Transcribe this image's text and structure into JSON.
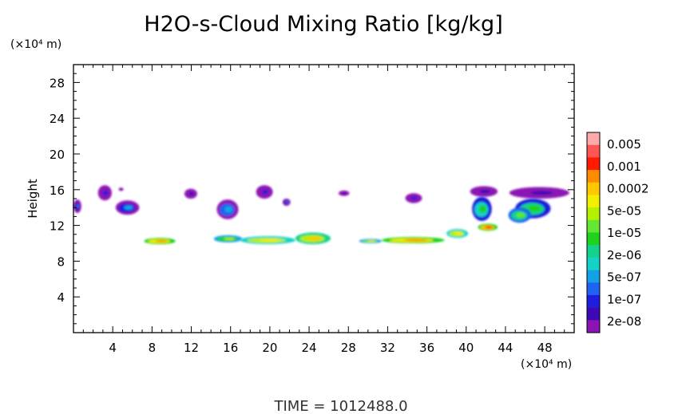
{
  "chart_data": {
    "type": "heatmap",
    "title": "H2O-s-Cloud Mixing Ratio [kg/kg]",
    "ylabel": "Height",
    "xlabel": "",
    "x_unit": "(×10⁴ m)",
    "y_unit": "(×10⁴ m)",
    "xlim": [
      0,
      51
    ],
    "ylim": [
      0,
      30
    ],
    "xticks": [
      4,
      8,
      12,
      16,
      20,
      24,
      28,
      32,
      36,
      40,
      44,
      48
    ],
    "yticks": [
      4,
      8,
      12,
      16,
      20,
      24,
      28
    ],
    "time_label": "TIME  =  1012488.0",
    "colorbar": {
      "labels": [
        "0.005",
        "0.001",
        "0.0002",
        "5e-05",
        "1e-05",
        "2e-06",
        "5e-07",
        "1e-07",
        "2e-08"
      ],
      "colors": [
        "#ffaaaa",
        "#ff5555",
        "#ff1a00",
        "#ff8c00",
        "#ffc800",
        "#f0f000",
        "#b4f000",
        "#64e632",
        "#1ed21e",
        "#14d28c",
        "#14d2c8",
        "#14a0e6",
        "#1e64f0",
        "#1e1edc",
        "#3c0ab4",
        "#8c14b4"
      ]
    },
    "regions": [
      {
        "x": [
          2.5,
          3.9
        ],
        "y": [
          14.8,
          16.5
        ],
        "level": 0.12
      },
      {
        "x": [
          4.3,
          6.7
        ],
        "y": [
          13.2,
          14.8
        ],
        "level": 0.25
      },
      {
        "x": [
          0.0,
          0.8
        ],
        "y": [
          13.4,
          14.9
        ],
        "level": 0.2
      },
      {
        "x": [
          4.6,
          5.1
        ],
        "y": [
          15.9,
          16.2
        ],
        "level": 0.05
      },
      {
        "x": [
          11.3,
          12.6
        ],
        "y": [
          15.0,
          16.1
        ],
        "level": 0.1
      },
      {
        "x": [
          14.6,
          16.8
        ],
        "y": [
          12.7,
          14.9
        ],
        "level": 0.3
      },
      {
        "x": [
          18.6,
          20.3
        ],
        "y": [
          15.0,
          16.5
        ],
        "level": 0.12
      },
      {
        "x": [
          21.3,
          22.1
        ],
        "y": [
          14.2,
          15.0
        ],
        "level": 0.2
      },
      {
        "x": [
          27.0,
          28.1
        ],
        "y": [
          15.3,
          15.9
        ],
        "level": 0.1
      },
      {
        "x": [
          33.8,
          35.5
        ],
        "y": [
          14.5,
          15.6
        ],
        "level": 0.15
      },
      {
        "x": [
          40.4,
          43.2
        ],
        "y": [
          15.2,
          16.4
        ],
        "level": 0.1
      },
      {
        "x": [
          40.6,
          42.6
        ],
        "y": [
          12.5,
          15.2
        ],
        "level": 0.45
      },
      {
        "x": [
          44.4,
          50.5
        ],
        "y": [
          15.0,
          16.3
        ],
        "level": 0.1
      },
      {
        "x": [
          45.0,
          48.6
        ],
        "y": [
          12.8,
          15.0
        ],
        "level": 0.5
      },
      {
        "x": [
          44.3,
          46.6
        ],
        "y": [
          12.3,
          14.0
        ],
        "level": 0.55
      },
      {
        "x": [
          7.2,
          10.4
        ],
        "y": [
          9.9,
          10.6
        ],
        "level": 0.8
      },
      {
        "x": [
          14.3,
          17.2
        ],
        "y": [
          10.1,
          10.9
        ],
        "level": 0.6
      },
      {
        "x": [
          17.0,
          22.6
        ],
        "y": [
          9.9,
          10.8
        ],
        "level": 0.7
      },
      {
        "x": [
          22.6,
          26.2
        ],
        "y": [
          9.9,
          11.2
        ],
        "level": 0.75
      },
      {
        "x": [
          29.1,
          31.4
        ],
        "y": [
          10.0,
          10.5
        ],
        "level": 0.65
      },
      {
        "x": [
          31.4,
          37.8
        ],
        "y": [
          10.0,
          10.7
        ],
        "level": 0.82
      },
      {
        "x": [
          38.0,
          40.2
        ],
        "y": [
          10.6,
          11.6
        ],
        "level": 0.7
      },
      {
        "x": [
          41.2,
          43.2
        ],
        "y": [
          11.4,
          12.2
        ],
        "level": 0.85
      }
    ]
  }
}
